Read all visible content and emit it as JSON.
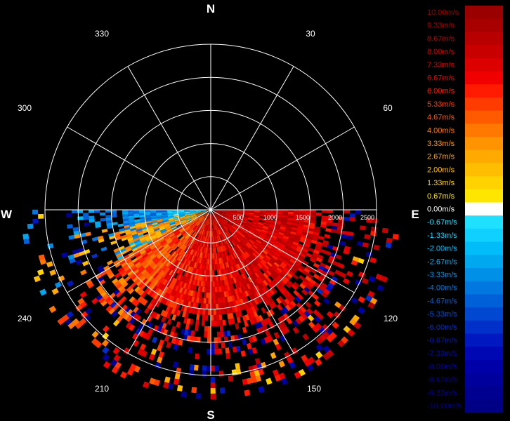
{
  "chart_data": {
    "type": "heatmap",
    "description_units": "radial velocity m/s",
    "compass": {
      "north": "N",
      "east": "E",
      "south": "S",
      "west": "W"
    },
    "azimuth_labels": [
      "30",
      "60",
      "120",
      "150",
      "210",
      "240",
      "300",
      "330"
    ],
    "range_labels": [
      "500",
      "1000",
      "1500",
      "2000",
      "2500"
    ],
    "colorbar": [
      {
        "label": "10.00m/s",
        "color": "#9a0000"
      },
      {
        "label": "9.33m/s",
        "color": "#a80000"
      },
      {
        "label": "8.67m/s",
        "color": "#b80000"
      },
      {
        "label": "8.00m/s",
        "color": "#c80000"
      },
      {
        "label": "7.33m/s",
        "color": "#dc0000"
      },
      {
        "label": "6.67m/s",
        "color": "#f00000"
      },
      {
        "label": "6.00m/s",
        "color": "#ff1a00"
      },
      {
        "label": "5.33m/s",
        "color": "#ff3c00"
      },
      {
        "label": "4.67m/s",
        "color": "#ff5a00"
      },
      {
        "label": "4.00m/s",
        "color": "#ff7800"
      },
      {
        "label": "3.33m/s",
        "color": "#ff9400"
      },
      {
        "label": "2.67m/s",
        "color": "#ffaa00"
      },
      {
        "label": "2.00m/s",
        "color": "#ffbe00"
      },
      {
        "label": "1.33m/s",
        "color": "#ffd200"
      },
      {
        "label": "0.67m/s",
        "color": "#ffe600"
      },
      {
        "label": "0.00m/s",
        "color": "#ffffff"
      },
      {
        "label": "-0.67m/s",
        "color": "#20e0ff"
      },
      {
        "label": "-1.33m/s",
        "color": "#10d0ff"
      },
      {
        "label": "-2.00m/s",
        "color": "#00bcf8"
      },
      {
        "label": "-2.67m/s",
        "color": "#00a8f0"
      },
      {
        "label": "-3.33m/s",
        "color": "#0090e8"
      },
      {
        "label": "-4.00m/s",
        "color": "#0078e0"
      },
      {
        "label": "-4.67m/s",
        "color": "#0060d8"
      },
      {
        "label": "-5.33m/s",
        "color": "#0048d0"
      },
      {
        "label": "-6.00m/s",
        "color": "#0030c8"
      },
      {
        "label": "-6.67m/s",
        "color": "#0018c0"
      },
      {
        "label": "-7.33m/s",
        "color": "#0008b4"
      },
      {
        "label": "-8.00m/s",
        "color": "#0000a8"
      },
      {
        "label": "-8.67m/s",
        "color": "#00009c"
      },
      {
        "label": "-9.33m/s",
        "color": "#000090"
      },
      {
        "label": "-10.00m/s",
        "color": "#000084"
      }
    ],
    "grid": true,
    "scan_sector_deg": [
      90,
      270
    ],
    "max_range": 2500
  }
}
